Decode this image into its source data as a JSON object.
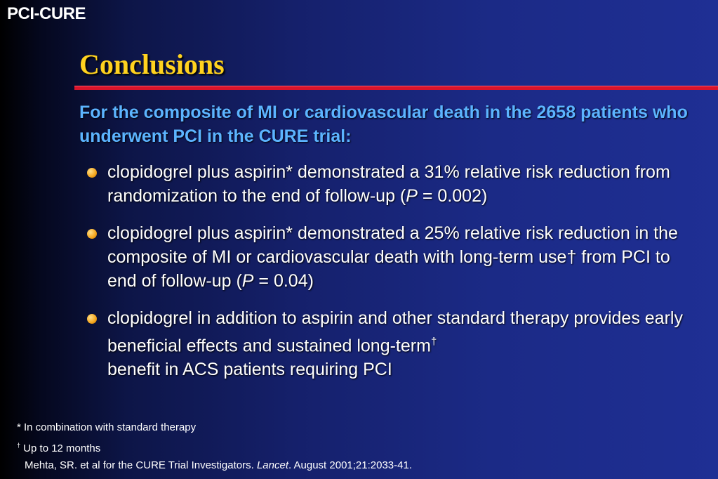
{
  "header": {
    "tag": "PCI-CURE",
    "title": "Conclusions"
  },
  "intro": "For the composite of MI or cardiovascular death in the 2658 patients who underwent PCI in the CURE trial:",
  "bullets": [
    {
      "text_a": "clopidogrel plus aspirin* demonstrated a 31% relative risk reduction from randomization to the end of follow-up (",
      "p_label": "P",
      "text_b": " = 0.002)"
    },
    {
      "text_a": "clopidogrel plus aspirin* demonstrated a 25% relative risk reduction in the composite of MI or cardiovascular death with long-term use† from PCI to end of follow-up (",
      "p_label": "P",
      "text_b": " = 0.04)"
    },
    {
      "text_a": "clopidogrel in addition to aspirin and other standard therapy provides early beneficial effects and sustained long-term",
      "sup": "†",
      "text_b": " benefit in ACS patients requiring PCI"
    }
  ],
  "footnotes": {
    "note1": "* In combination with standard therapy",
    "note2_mark": "†",
    "note2_text": " Up to 12 months",
    "ref_before": "Mehta, SR. et al for the CURE Trial Investigators. ",
    "ref_journal": "Lancet",
    "ref_after": ". August 2001;21:2033-41."
  },
  "colors": {
    "title": "#ffd21f",
    "intro": "#5cb4ff",
    "rule": "#d9142b",
    "bullet": "#f4a51c"
  }
}
